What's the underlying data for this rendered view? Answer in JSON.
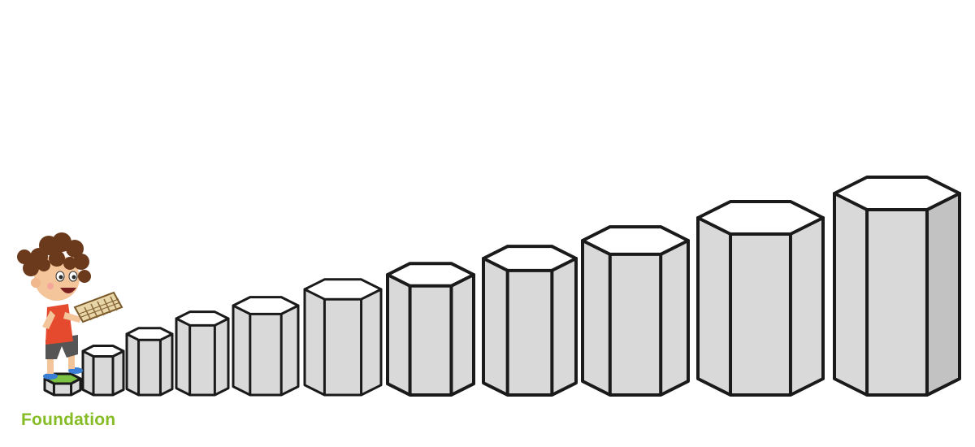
{
  "levels": {
    "count": 11,
    "first_label": "Foundation"
  },
  "colors": {
    "label_green": "#86bc25",
    "pillar_outline": "#1a1a1a",
    "pillar_side": "#d9d9d9",
    "pillar_shade": "#c2c2c2",
    "pillar_top": "#ffffff",
    "shirt_red": "#e64a2e",
    "hair_brown": "#6b3a1c",
    "shoe_blue": "#3a7fd5",
    "step_green": "#7cc242"
  },
  "illustration": {
    "character": "boy-holding-abacus"
  }
}
